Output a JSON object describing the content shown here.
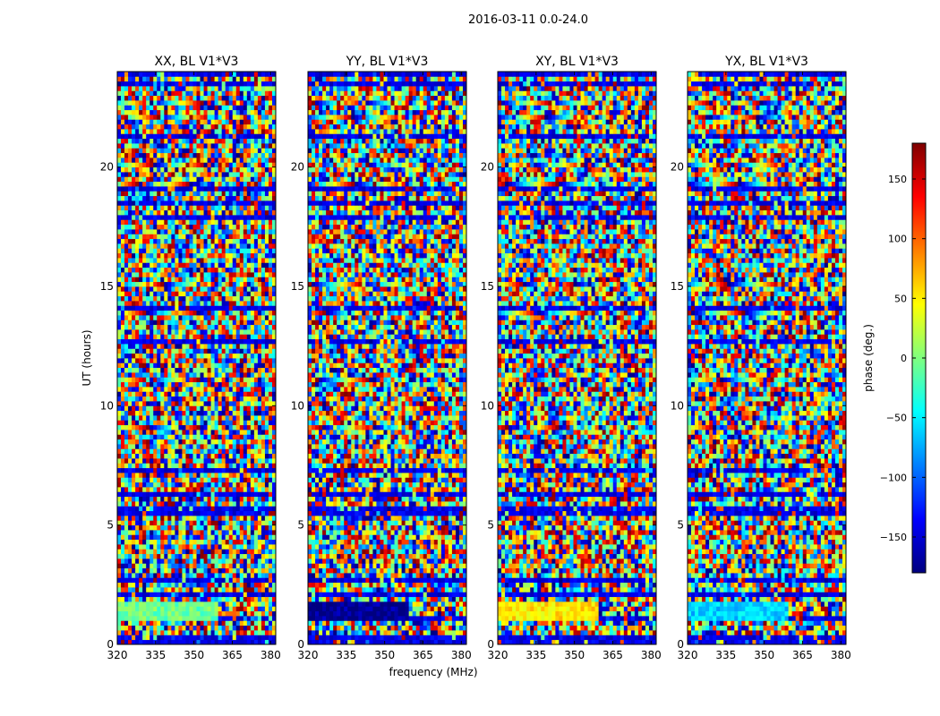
{
  "figure": {
    "suptitle": "2016-03-11 0.0-24.0",
    "xlabel": "frequency (MHz)",
    "ylabel": "UT (hours)"
  },
  "colorbar": {
    "label": "phase (deg.)",
    "range": [
      -180,
      180
    ],
    "ticks": [
      -150,
      -100,
      -50,
      0,
      50,
      100,
      150
    ],
    "tick_labels": [
      "−150",
      "−100",
      "−50",
      "0",
      "50",
      "100",
      "150"
    ],
    "colormap": "jet",
    "colors": [
      "#00007f",
      "#0000ff",
      "#007fff",
      "#00ffff",
      "#7fff7f",
      "#ffff00",
      "#ff7f00",
      "#ff0000",
      "#7f0000"
    ]
  },
  "chart_data": [
    {
      "type": "heatmap",
      "title": "XX, BL V1*V3",
      "x_range_mhz": [
        320,
        382
      ],
      "y_range_hours": [
        0,
        24
      ],
      "x_ticks": [
        320,
        335,
        350,
        365,
        380
      ],
      "y_ticks": [
        0,
        5,
        10,
        15,
        20
      ],
      "values": "wrapped visibility phase vs. frequency and UT, noise-like, -180..180 deg"
    },
    {
      "type": "heatmap",
      "title": "YY, BL V1*V3",
      "x_range_mhz": [
        320,
        382
      ],
      "y_range_hours": [
        0,
        24
      ],
      "x_ticks": [
        320,
        335,
        350,
        365,
        380
      ],
      "y_ticks": [
        0,
        5,
        10,
        15,
        20
      ],
      "values": "wrapped visibility phase vs. frequency and UT, noise-like, -180..180 deg"
    },
    {
      "type": "heatmap",
      "title": "XY, BL V1*V3",
      "x_range_mhz": [
        320,
        382
      ],
      "y_range_hours": [
        0,
        24
      ],
      "x_ticks": [
        320,
        335,
        350,
        365,
        380
      ],
      "y_ticks": [
        0,
        5,
        10,
        15,
        20
      ],
      "values": "wrapped visibility phase vs. frequency and UT, noise-like, -180..180 deg"
    },
    {
      "type": "heatmap",
      "title": "YX, BL V1*V3",
      "x_range_mhz": [
        320,
        382
      ],
      "y_range_hours": [
        0,
        24
      ],
      "x_ticks": [
        320,
        335,
        350,
        365,
        380
      ],
      "y_ticks": [
        0,
        5,
        10,
        15,
        20
      ],
      "values": "wrapped visibility phase vs. frequency and UT, noise-like, -180..180 deg"
    }
  ]
}
